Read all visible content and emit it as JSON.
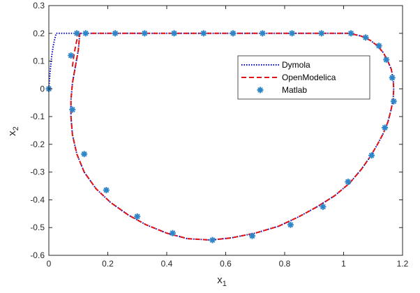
{
  "chart_data": {
    "type": "line",
    "xlabel": "x",
    "xlabel_sub": "1",
    "ylabel": "x",
    "ylabel_sub": "2",
    "xlim": [
      0,
      1.2
    ],
    "ylim": [
      -0.6,
      0.3
    ],
    "x_ticks": [
      0,
      0.2,
      0.4,
      0.6,
      0.8,
      1,
      1.2
    ],
    "y_ticks": [
      -0.6,
      -0.5,
      -0.4,
      -0.3,
      -0.2,
      -0.1,
      0,
      0.1,
      0.2,
      0.3
    ],
    "x_tick_labels": [
      "0",
      "0.2",
      "0.4",
      "0.6",
      "0.8",
      "1",
      "1.2"
    ],
    "y_tick_labels": [
      "-0.6",
      "-0.5",
      "-0.4",
      "-0.3",
      "-0.2",
      "-0.1",
      "0",
      "0.1",
      "0.2",
      "0.3"
    ],
    "grid": false,
    "legend_position": "upper-right-inside",
    "series": [
      {
        "name": "Dymola",
        "style": "dotted",
        "color": "#0000c8",
        "x": [
          0,
          0.005,
          0.01,
          0.015,
          0.02,
          0.025,
          0.05,
          0.08,
          0.095,
          0.1,
          0.15,
          0.3,
          0.5,
          0.7,
          0.9,
          1.02,
          1.06,
          1.09,
          1.115,
          1.135,
          1.15,
          1.162,
          1.168,
          1.17,
          1.168,
          1.16,
          1.15,
          1.135,
          1.115,
          1.09,
          1.06,
          1.02,
          0.97,
          0.91,
          0.85,
          0.78,
          0.7,
          0.62,
          0.55,
          0.47,
          0.4,
          0.33,
          0.27,
          0.21,
          0.16,
          0.12,
          0.095,
          0.08,
          0.075,
          0.075,
          0.08,
          0.09,
          0.1,
          0.105
        ],
        "y": [
          0,
          0.07,
          0.12,
          0.155,
          0.18,
          0.2,
          0.2,
          0.2,
          0.2,
          0.2,
          0.2,
          0.2,
          0.2,
          0.2,
          0.2,
          0.2,
          0.19,
          0.175,
          0.155,
          0.13,
          0.1,
          0.07,
          0.035,
          0,
          -0.04,
          -0.08,
          -0.12,
          -0.16,
          -0.2,
          -0.245,
          -0.29,
          -0.34,
          -0.385,
          -0.425,
          -0.46,
          -0.495,
          -0.52,
          -0.537,
          -0.545,
          -0.54,
          -0.52,
          -0.49,
          -0.455,
          -0.41,
          -0.36,
          -0.3,
          -0.235,
          -0.165,
          -0.1,
          -0.04,
          0.02,
          0.08,
          0.14,
          0.2
        ]
      },
      {
        "name": "OpenModelica",
        "style": "dashed",
        "color": "#e01414",
        "x": [
          0.08,
          0.085,
          0.09,
          0.095,
          0.1,
          0.105,
          0.15,
          0.3,
          0.5,
          0.7,
          0.9,
          1.02,
          1.06,
          1.09,
          1.115,
          1.135,
          1.15,
          1.162,
          1.168,
          1.17,
          1.168,
          1.16,
          1.15,
          1.135,
          1.115,
          1.09,
          1.06,
          1.02,
          0.97,
          0.91,
          0.85,
          0.78,
          0.7,
          0.62,
          0.55,
          0.47,
          0.4,
          0.33,
          0.27,
          0.21,
          0.16,
          0.12,
          0.095,
          0.08,
          0.075,
          0.075,
          0.08,
          0.09,
          0.1,
          0.105
        ],
        "y": [
          0.08,
          0.12,
          0.15,
          0.175,
          0.19,
          0.2,
          0.2,
          0.2,
          0.2,
          0.2,
          0.2,
          0.2,
          0.19,
          0.175,
          0.155,
          0.13,
          0.1,
          0.07,
          0.035,
          0,
          -0.04,
          -0.08,
          -0.12,
          -0.16,
          -0.2,
          -0.245,
          -0.29,
          -0.34,
          -0.385,
          -0.425,
          -0.46,
          -0.495,
          -0.52,
          -0.537,
          -0.545,
          -0.54,
          -0.52,
          -0.49,
          -0.455,
          -0.41,
          -0.36,
          -0.3,
          -0.235,
          -0.165,
          -0.1,
          -0.04,
          0.02,
          0.08,
          0.14,
          0.2
        ]
      },
      {
        "name": "Matlab",
        "style": "markers",
        "color": "#2e86c8",
        "x": [
          0,
          0.08,
          0.075,
          0.12,
          0.195,
          0.3,
          0.42,
          0.555,
          0.69,
          0.82,
          0.93,
          1.015,
          1.095,
          1.14,
          1.17,
          1.165,
          1.145,
          1.12,
          1.075,
          1.025,
          0.925,
          0.825,
          0.725,
          0.625,
          0.525,
          0.425,
          0.325,
          0.225,
          0.125,
          0.095
        ],
        "y": [
          0,
          -0.075,
          0.12,
          -0.235,
          -0.365,
          -0.46,
          -0.52,
          -0.545,
          -0.53,
          -0.49,
          -0.425,
          -0.335,
          -0.24,
          -0.14,
          -0.045,
          0.04,
          0.105,
          0.155,
          0.185,
          0.2,
          0.2,
          0.2,
          0.2,
          0.2,
          0.2,
          0.2,
          0.2,
          0.2,
          0.2,
          0.2
        ]
      }
    ]
  }
}
